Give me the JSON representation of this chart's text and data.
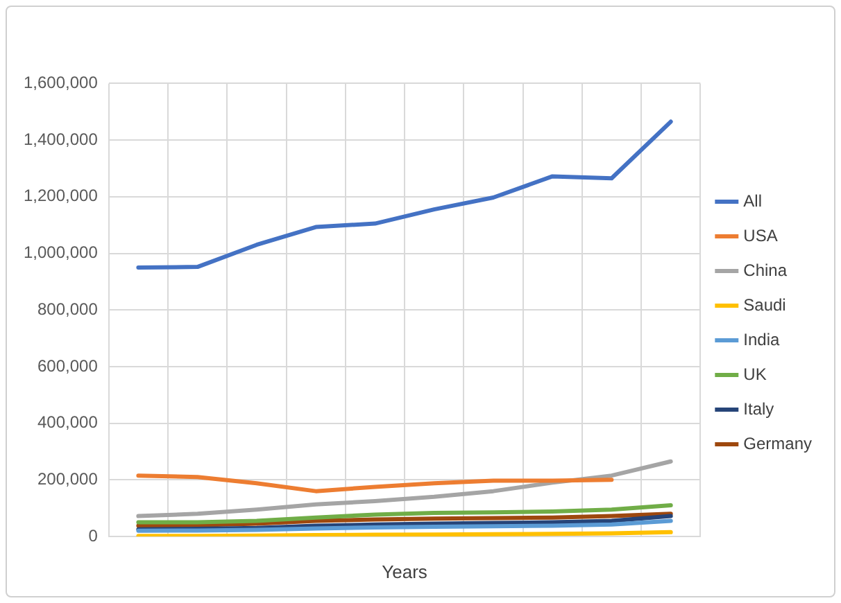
{
  "chart_data": {
    "type": "line",
    "xlabel": "Years",
    "categories": [
      null,
      null,
      null,
      null,
      null,
      null,
      null,
      null,
      null,
      null
    ],
    "ylim": [
      0,
      1600000
    ],
    "yticks": [
      0,
      {
        "value": 200000,
        "label": "200,000"
      },
      {
        "value": 400000,
        "label": "400,000"
      },
      {
        "value": 600000,
        "label": "600,000"
      },
      {
        "value": 800000,
        "label": "800,000"
      },
      {
        "value": 1000000,
        "label": "1,000,000"
      },
      {
        "value": 1200000,
        "label": "1,200,000"
      },
      {
        "value": 1400000,
        "label": "1,400,000"
      },
      {
        "value": 1600000,
        "label": "1,600,000"
      }
    ],
    "grid": true,
    "legend": "right",
    "marker": "none",
    "series": [
      {
        "name": "All",
        "color": "#4472c4",
        "values": [
          950000,
          952000,
          1030000,
          1093000,
          1105000,
          1155000,
          1197000,
          1272000,
          1265000,
          1465000
        ]
      },
      {
        "name": "USA",
        "color": "#ed7d31",
        "values": [
          215000,
          210000,
          188000,
          160000,
          175000,
          188000,
          197000,
          197000,
          200000,
          null
        ]
      },
      {
        "name": "China",
        "color": "#a5a5a5",
        "values": [
          72000,
          80000,
          95000,
          113000,
          125000,
          140000,
          160000,
          190000,
          215000,
          265000
        ]
      },
      {
        "name": "Saudi",
        "color": "#ffc000",
        "values": [
          2000,
          2000,
          3000,
          5000,
          6000,
          7000,
          8000,
          9000,
          11000,
          15000
        ]
      },
      {
        "name": "India",
        "color": "#5b9bd5",
        "values": [
          20000,
          21000,
          23000,
          28000,
          32000,
          34000,
          36000,
          38000,
          42000,
          55000
        ]
      },
      {
        "name": "UK",
        "color": "#70ad47",
        "values": [
          50000,
          50000,
          55000,
          67000,
          77000,
          83000,
          85000,
          88000,
          95000,
          110000
        ]
      },
      {
        "name": "Italy",
        "color": "#264478",
        "values": [
          25000,
          27000,
          30000,
          38000,
          42000,
          45000,
          48000,
          50000,
          55000,
          72000
        ]
      },
      {
        "name": "Germany",
        "color": "#9e480e",
        "values": [
          38000,
          40000,
          45000,
          55000,
          60000,
          63000,
          65000,
          67000,
          72000,
          80000
        ]
      }
    ]
  }
}
